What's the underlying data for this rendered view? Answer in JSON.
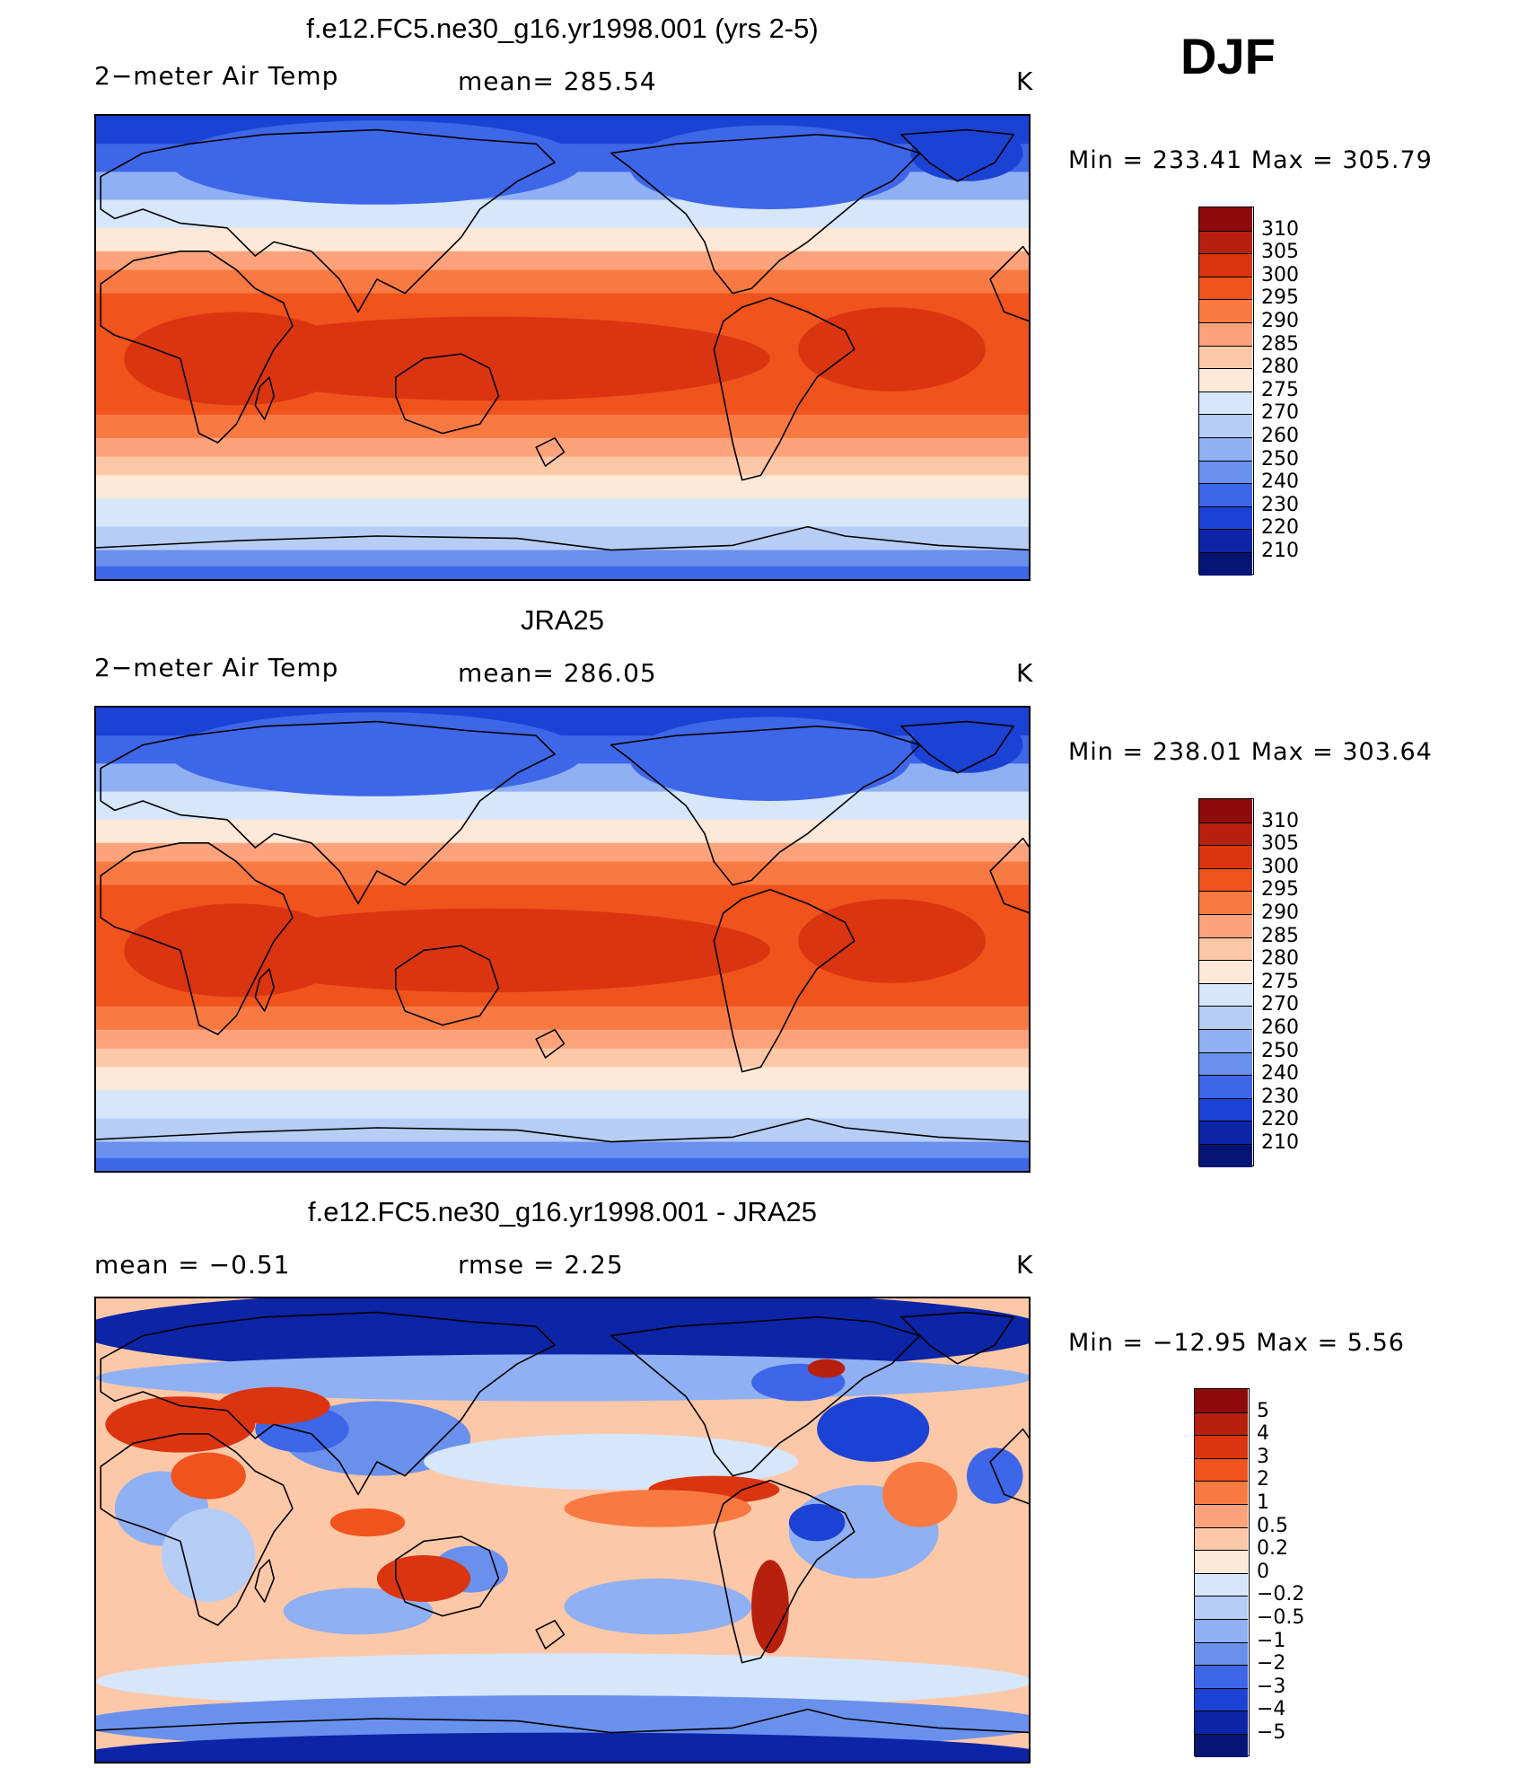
{
  "season": "DJF",
  "panels": [
    {
      "id": "model",
      "title": "f.e12.FC5.ne30_g16.yr1998.001 (yrs 2-5)",
      "left_label": "2−meter Air Temp",
      "center_label": "mean=  285.54",
      "units": "K",
      "minmax": "Min  =  233.41  Max  =  305.79",
      "colorbar": {
        "labels": [
          "310",
          "305",
          "300",
          "295",
          "290",
          "285",
          "280",
          "275",
          "270",
          "260",
          "250",
          "240",
          "230",
          "220",
          "210"
        ],
        "colors": [
          "#8f0a0a",
          "#b8200e",
          "#da3510",
          "#f0531c",
          "#f87a42",
          "#fda37c",
          "#fdc8a8",
          "#fee8d8",
          "#d6e6fb",
          "#b6cdf6",
          "#8fb0f2",
          "#6a90ee",
          "#3d66e8",
          "#1b42d4",
          "#0c24a6",
          "#061573"
        ]
      },
      "map_style": "temperature"
    },
    {
      "id": "obs",
      "title": "JRA25",
      "left_label": "2−meter Air Temp",
      "center_label": "mean=  286.05",
      "units": "K",
      "minmax": "Min  =  238.01  Max  =  303.64",
      "colorbar": {
        "labels": [
          "310",
          "305",
          "300",
          "295",
          "290",
          "285",
          "280",
          "275",
          "270",
          "260",
          "250",
          "240",
          "230",
          "220",
          "210"
        ],
        "colors": [
          "#8f0a0a",
          "#b8200e",
          "#da3510",
          "#f0531c",
          "#f87a42",
          "#fda37c",
          "#fdc8a8",
          "#fee8d8",
          "#d6e6fb",
          "#b6cdf6",
          "#8fb0f2",
          "#6a90ee",
          "#3d66e8",
          "#1b42d4",
          "#0c24a6",
          "#061573"
        ]
      },
      "map_style": "temperature"
    },
    {
      "id": "diff",
      "title": "f.e12.FC5.ne30_g16.yr1998.001 - JRA25",
      "left_label": "mean =    −0.51",
      "center_label": "rmse =     2.25",
      "units": "K",
      "minmax": "Min  =  −12.95  Max  =     5.56",
      "colorbar": {
        "labels": [
          "5",
          "4",
          "3",
          "2",
          "1",
          "0.5",
          "0.2",
          "0",
          "−0.2",
          "−0.5",
          "−1",
          "−2",
          "−3",
          "−4",
          "−5"
        ],
        "colors": [
          "#8f0a0a",
          "#b8200e",
          "#da3510",
          "#f0531c",
          "#f87a42",
          "#fda37c",
          "#fdc8a8",
          "#fee8d8",
          "#d6e6fb",
          "#b6cdf6",
          "#8fb0f2",
          "#6a90ee",
          "#3d66e8",
          "#1b42d4",
          "#0c24a6",
          "#061573"
        ]
      },
      "map_style": "difference"
    }
  ]
}
